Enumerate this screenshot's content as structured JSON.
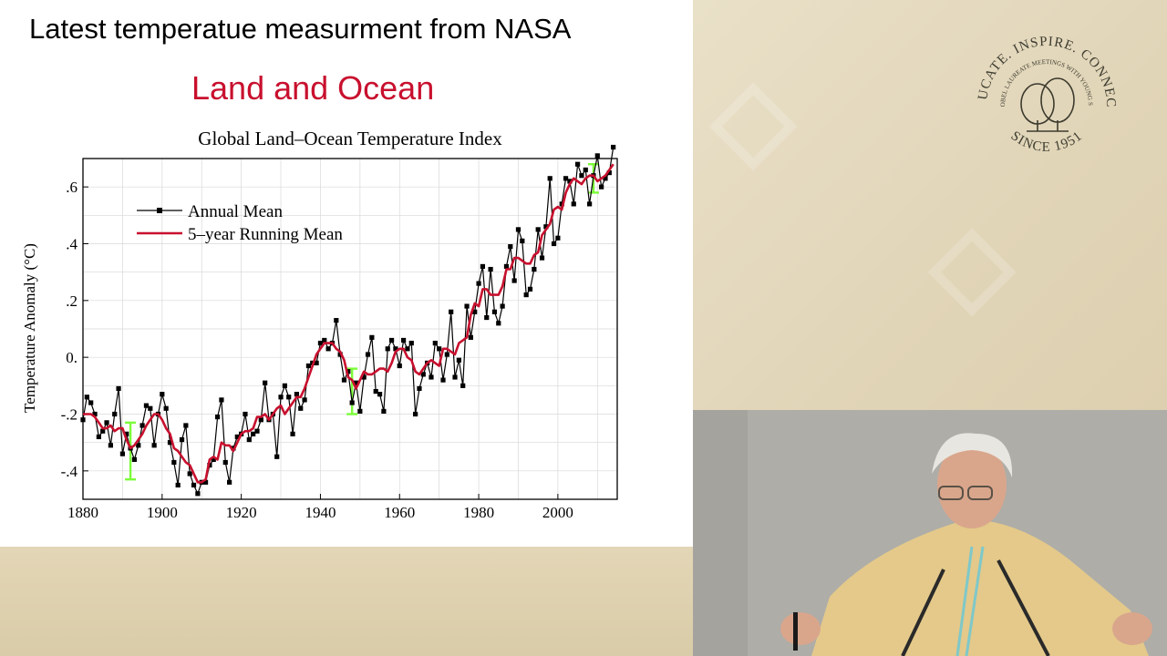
{
  "slide": {
    "title": "Latest temperatue measurment from NASA",
    "subtitle": "Land and Ocean"
  },
  "logo": {
    "arc_text": "EDUCATE. INSPIRE. CONNECT.",
    "inner_text": "LINDAU NOBEL LAUREATE MEETINGS WITH YOUNG SCIENTISTS",
    "since": "SINCE 1951"
  },
  "colors": {
    "title_red": "#c8102e",
    "annual_mean": "#000000",
    "running_mean": "#c8102e",
    "error_bar": "#7cfc3a",
    "backdrop": "#e6dcc0"
  },
  "chart_data": {
    "type": "line",
    "title": "Global Land–Ocean Temperature Index",
    "xlabel": "",
    "ylabel": "Temperature Anomaly (°C)",
    "xlim": [
      1880,
      2015
    ],
    "ylim": [
      -0.5,
      0.7
    ],
    "xticks": [
      1880,
      1900,
      1920,
      1940,
      1960,
      1980,
      2000
    ],
    "xtick_labels": [
      "1880",
      "1900",
      "1920",
      "1940",
      "1960",
      "1980",
      "2000"
    ],
    "yticks": [
      -0.4,
      -0.2,
      0,
      0.2,
      0.4,
      0.6
    ],
    "ytick_labels": [
      "-.4",
      "-.2",
      "0.",
      ".2",
      ".4",
      ".6"
    ],
    "legend_position": "top-left",
    "grid": true,
    "x": [
      1880,
      1881,
      1882,
      1883,
      1884,
      1885,
      1886,
      1887,
      1888,
      1889,
      1890,
      1891,
      1892,
      1893,
      1894,
      1895,
      1896,
      1897,
      1898,
      1899,
      1900,
      1901,
      1902,
      1903,
      1904,
      1905,
      1906,
      1907,
      1908,
      1909,
      1910,
      1911,
      1912,
      1913,
      1914,
      1915,
      1916,
      1917,
      1918,
      1919,
      1920,
      1921,
      1922,
      1923,
      1924,
      1925,
      1926,
      1927,
      1928,
      1929,
      1930,
      1931,
      1932,
      1933,
      1934,
      1935,
      1936,
      1937,
      1938,
      1939,
      1940,
      1941,
      1942,
      1943,
      1944,
      1945,
      1946,
      1947,
      1948,
      1949,
      1950,
      1951,
      1952,
      1953,
      1954,
      1955,
      1956,
      1957,
      1958,
      1959,
      1960,
      1961,
      1962,
      1963,
      1964,
      1965,
      1966,
      1967,
      1968,
      1969,
      1970,
      1971,
      1972,
      1973,
      1974,
      1975,
      1976,
      1977,
      1978,
      1979,
      1980,
      1981,
      1982,
      1983,
      1984,
      1985,
      1986,
      1987,
      1988,
      1989,
      1990,
      1991,
      1992,
      1993,
      1994,
      1995,
      1996,
      1997,
      1998,
      1999,
      2000,
      2001,
      2002,
      2003,
      2004,
      2005,
      2006,
      2007,
      2008,
      2009,
      2010,
      2011,
      2012,
      2013,
      2014
    ],
    "series": [
      {
        "name": "Annual Mean",
        "values": [
          -0.22,
          -0.14,
          -0.16,
          -0.2,
          -0.28,
          -0.26,
          -0.23,
          -0.31,
          -0.2,
          -0.11,
          -0.34,
          -0.27,
          -0.32,
          -0.36,
          -0.31,
          -0.24,
          -0.17,
          -0.18,
          -0.31,
          -0.2,
          -0.13,
          -0.18,
          -0.3,
          -0.37,
          -0.45,
          -0.29,
          -0.24,
          -0.41,
          -0.45,
          -0.48,
          -0.44,
          -0.44,
          -0.38,
          -0.36,
          -0.21,
          -0.15,
          -0.37,
          -0.44,
          -0.32,
          -0.28,
          -0.27,
          -0.2,
          -0.29,
          -0.27,
          -0.26,
          -0.22,
          -0.09,
          -0.22,
          -0.2,
          -0.35,
          -0.14,
          -0.1,
          -0.14,
          -0.27,
          -0.13,
          -0.18,
          -0.15,
          -0.03,
          -0.02,
          -0.02,
          0.05,
          0.06,
          0.03,
          0.05,
          0.13,
          0.01,
          -0.08,
          -0.05,
          -0.16,
          -0.09,
          -0.19,
          -0.07,
          0.01,
          0.07,
          -0.12,
          -0.13,
          -0.19,
          0.03,
          0.06,
          0.03,
          -0.03,
          0.06,
          0.03,
          0.05,
          -0.2,
          -0.11,
          -0.06,
          -0.02,
          -0.07,
          0.05,
          0.03,
          -0.08,
          0.01,
          0.16,
          -0.07,
          -0.01,
          -0.1,
          0.18,
          0.07,
          0.16,
          0.26,
          0.32,
          0.14,
          0.31,
          0.16,
          0.12,
          0.18,
          0.32,
          0.39,
          0.27,
          0.45,
          0.41,
          0.22,
          0.24,
          0.31,
          0.45,
          0.35,
          0.46,
          0.63,
          0.4,
          0.42,
          0.54,
          0.63,
          0.62,
          0.54,
          0.68,
          0.64,
          0.66,
          0.54,
          0.64,
          0.71,
          0.6,
          0.63,
          0.65,
          0.74
        ]
      },
      {
        "name": "5–year Running Mean",
        "values": [
          -0.2,
          -0.2,
          -0.2,
          -0.21,
          -0.23,
          -0.25,
          -0.25,
          -0.24,
          -0.26,
          -0.25,
          -0.25,
          -0.29,
          -0.32,
          -0.31,
          -0.29,
          -0.27,
          -0.24,
          -0.22,
          -0.2,
          -0.2,
          -0.22,
          -0.25,
          -0.27,
          -0.32,
          -0.33,
          -0.35,
          -0.37,
          -0.38,
          -0.41,
          -0.44,
          -0.44,
          -0.43,
          -0.36,
          -0.35,
          -0.36,
          -0.3,
          -0.31,
          -0.31,
          -0.33,
          -0.3,
          -0.27,
          -0.26,
          -0.26,
          -0.25,
          -0.21,
          -0.21,
          -0.2,
          -0.22,
          -0.2,
          -0.18,
          -0.17,
          -0.2,
          -0.18,
          -0.16,
          -0.14,
          -0.14,
          -0.11,
          -0.07,
          -0.03,
          0.01,
          0.03,
          0.05,
          0.05,
          0.05,
          0.03,
          0.02,
          -0.01,
          -0.07,
          -0.08,
          -0.11,
          -0.08,
          -0.05,
          -0.06,
          -0.06,
          -0.05,
          -0.04,
          -0.04,
          -0.05,
          -0.02,
          0.02,
          0.03,
          0.03,
          0.0,
          -0.01,
          -0.05,
          -0.06,
          -0.04,
          -0.02,
          -0.01,
          -0.02,
          -0.03,
          0.03,
          0.03,
          0.02,
          0.01,
          0.05,
          0.06,
          0.07,
          0.15,
          0.19,
          0.18,
          0.24,
          0.24,
          0.22,
          0.22,
          0.22,
          0.25,
          0.31,
          0.31,
          0.35,
          0.35,
          0.34,
          0.33,
          0.33,
          0.36,
          0.37,
          0.43,
          0.45,
          0.47,
          0.52,
          0.53,
          0.52,
          0.58,
          0.61,
          0.63,
          0.62,
          0.61,
          0.63,
          0.64,
          0.64,
          0.62,
          0.63,
          0.64,
          0.66,
          0.68
        ]
      }
    ],
    "error_bars": [
      {
        "x": 1892,
        "low": -0.43,
        "high": -0.23
      },
      {
        "x": 1948,
        "low": -0.2,
        "high": -0.04
      },
      {
        "x": 2009,
        "low": 0.58,
        "high": 0.68
      }
    ]
  }
}
